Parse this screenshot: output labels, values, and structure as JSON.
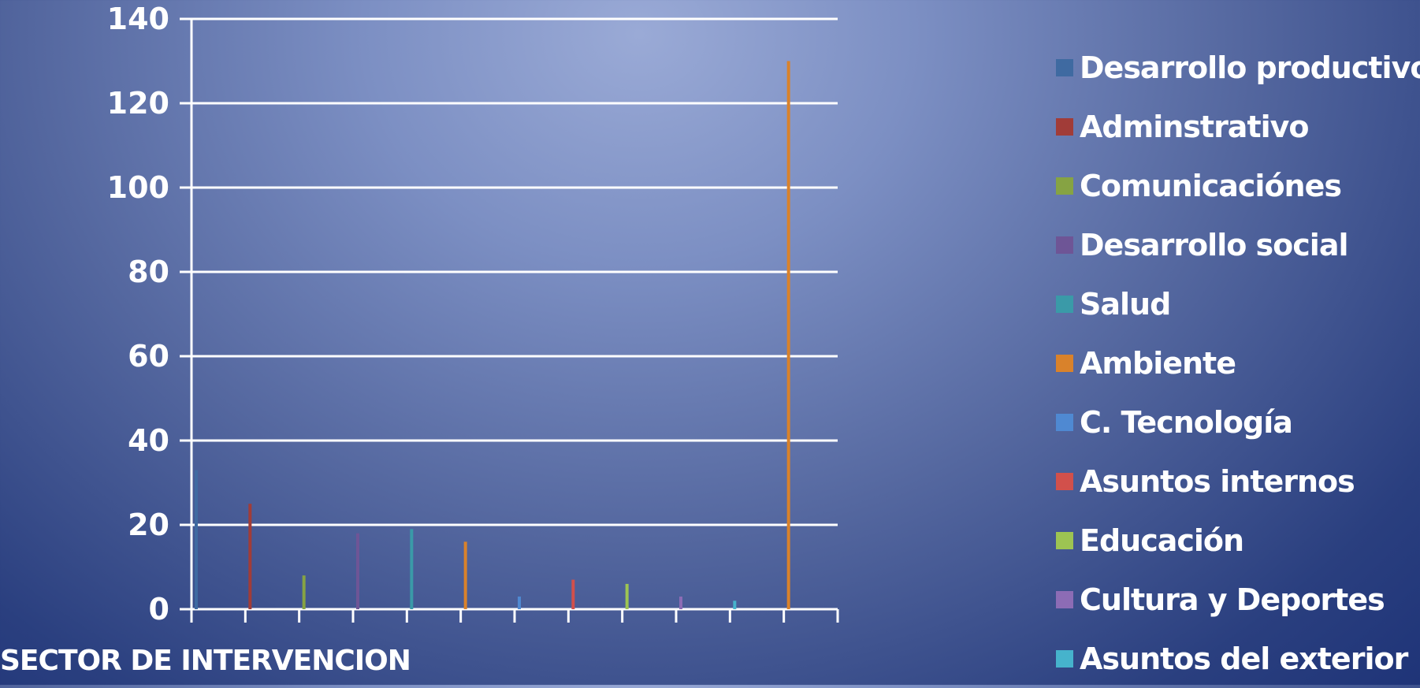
{
  "chart_data": {
    "type": "bar",
    "xlabel": "SECTOR DE INTERVENCION",
    "ylabel": "",
    "ylim": [
      0,
      140
    ],
    "yticks": [
      0,
      20,
      40,
      60,
      80,
      100,
      120,
      140
    ],
    "grid": true,
    "legend_position": "right",
    "series": [
      {
        "name": "Desarrollo productivo",
        "color": "#3f6aa1",
        "values": [
          33,
          0,
          0,
          0,
          0,
          0,
          0,
          0,
          0,
          0,
          0,
          0
        ]
      },
      {
        "name": "Adminstrativo",
        "color": "#a13c38",
        "values": [
          0,
          25,
          0,
          0,
          0,
          0,
          0,
          0,
          0,
          0,
          0,
          0
        ]
      },
      {
        "name": "Comunicaciónes",
        "color": "#86a343",
        "values": [
          0,
          0,
          8,
          0,
          0,
          0,
          0,
          0,
          0,
          0,
          0,
          0
        ]
      },
      {
        "name": "Desarrollo social",
        "color": "#6e5596",
        "values": [
          0,
          0,
          0,
          18,
          0,
          0,
          0,
          0,
          0,
          0,
          0,
          0
        ]
      },
      {
        "name": "Salud",
        "color": "#3a9aa8",
        "values": [
          0,
          0,
          0,
          0,
          19,
          0,
          0,
          0,
          0,
          0,
          0,
          0
        ]
      },
      {
        "name": "Ambiente",
        "color": "#d9822b",
        "values": [
          0,
          0,
          0,
          0,
          0,
          16,
          0,
          0,
          0,
          0,
          0,
          130
        ]
      },
      {
        "name": "C. Tecnología",
        "color": "#4f89d2",
        "values": [
          0,
          0,
          0,
          0,
          0,
          0,
          3,
          0,
          0,
          0,
          0,
          0
        ]
      },
      {
        "name": "Asuntos internos",
        "color": "#d2504b",
        "values": [
          0,
          0,
          0,
          0,
          0,
          0,
          0,
          7,
          0,
          0,
          0,
          0
        ]
      },
      {
        "name": "Educación",
        "color": "#9dc452",
        "values": [
          0,
          0,
          0,
          0,
          0,
          0,
          0,
          0,
          6,
          0,
          0,
          0
        ]
      },
      {
        "name": "Cultura y Deportes",
        "color": "#8c6cb5",
        "values": [
          0,
          0,
          0,
          0,
          0,
          0,
          0,
          0,
          0,
          3,
          0,
          0
        ]
      },
      {
        "name": "Asuntos del exterior",
        "color": "#46b3cc",
        "values": [
          0,
          0,
          0,
          0,
          0,
          0,
          0,
          0,
          0,
          0,
          2,
          0
        ]
      }
    ]
  }
}
